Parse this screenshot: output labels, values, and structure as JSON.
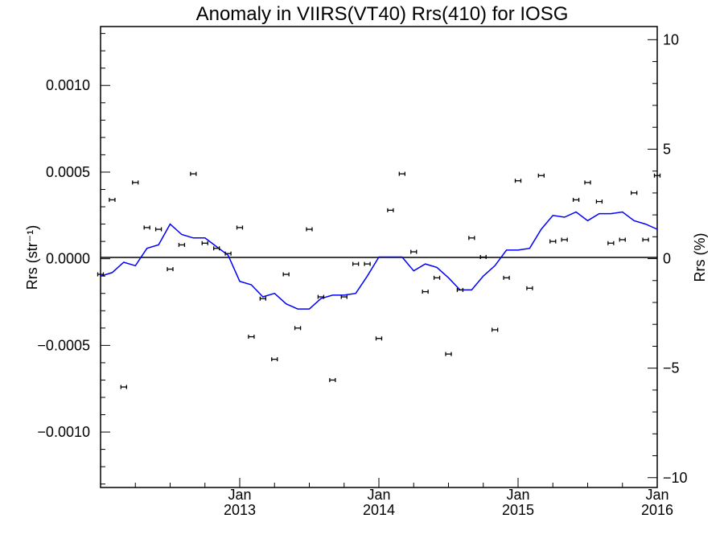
{
  "chart_data": {
    "type": "scatter",
    "title": "Anomaly in VIIRS(VT40) Rrs(410) for IOSG",
    "ylabel_left": "Rrs (str⁻¹)",
    "ylabel_right": "Rrs (%)",
    "xlabel": "",
    "x_ticks": [
      {
        "month": "Jan",
        "year": "2013"
      },
      {
        "month": "Jan",
        "year": "2014"
      },
      {
        "month": "Jan",
        "year": "2015"
      },
      {
        "month": "Jan",
        "year": "2016"
      }
    ],
    "left_ticks": [
      "0.0010",
      "0.0005",
      "0.0000",
      "−0.0005",
      "−0.0010"
    ],
    "right_ticks": [
      "10",
      "5",
      "0",
      "−5",
      "−10"
    ],
    "xlim": [
      "2012-01",
      "2016-01"
    ],
    "ylim_left": [
      -0.00132,
      0.00134
    ],
    "ylim_right": [
      -10.45,
      10.6
    ],
    "grid": false,
    "zero_line": true,
    "colors": {
      "points": "#000000",
      "line": "#0000ff",
      "zero_line": "#000000"
    },
    "series": [
      {
        "kind": "points_with_error_bars",
        "x": [
          "2012-01",
          "2012-02",
          "2012-03",
          "2012-04",
          "2012-05",
          "2012-06",
          "2012-07",
          "2012-08",
          "2012-09",
          "2012-10",
          "2012-11",
          "2012-12",
          "2013-01",
          "2013-02",
          "2013-03",
          "2013-04",
          "2013-05",
          "2013-06",
          "2013-07",
          "2013-08",
          "2013-09",
          "2013-10",
          "2013-11",
          "2013-12",
          "2014-01",
          "2014-02",
          "2014-03",
          "2014-04",
          "2014-05",
          "2014-06",
          "2014-07",
          "2014-08",
          "2014-09",
          "2014-10",
          "2014-11",
          "2014-12",
          "2015-01",
          "2015-02",
          "2015-03",
          "2015-04",
          "2015-05",
          "2015-06",
          "2015-07",
          "2015-08",
          "2015-09",
          "2015-10",
          "2015-11",
          "2015-12",
          "2016-01"
        ],
        "y": [
          -9e-05,
          0.00034,
          -0.00074,
          0.00044,
          0.00018,
          0.00017,
          -6e-05,
          8e-05,
          0.00049,
          9e-05,
          6e-05,
          3e-05,
          0.00018,
          -0.00045,
          -0.00023,
          -0.00058,
          -9e-05,
          -0.0004,
          0.00017,
          -0.00022,
          -0.0007,
          -0.00022,
          -3e-05,
          -3e-05,
          -0.00046,
          0.00028,
          0.00049,
          4e-05,
          -0.00019,
          -0.00011,
          -0.00055,
          -0.00018,
          0.00012,
          1e-05,
          -0.00041,
          -0.00011,
          0.00045,
          -0.00017,
          0.00048,
          0.0001,
          0.00011,
          0.00034,
          0.00044,
          0.00033,
          9e-05,
          0.00011,
          0.00038,
          0.00011,
          0.00048
        ]
      },
      {
        "kind": "line",
        "x": [
          "2012-01",
          "2012-02",
          "2012-03",
          "2012-04",
          "2012-05",
          "2012-06",
          "2012-07",
          "2012-08",
          "2012-09",
          "2012-10",
          "2012-11",
          "2012-12",
          "2013-01",
          "2013-02",
          "2013-03",
          "2013-04",
          "2013-05",
          "2013-06",
          "2013-07",
          "2013-08",
          "2013-09",
          "2013-10",
          "2013-11",
          "2013-12",
          "2014-01",
          "2014-02",
          "2014-03",
          "2014-04",
          "2014-05",
          "2014-06",
          "2014-07",
          "2014-08",
          "2014-09",
          "2014-10",
          "2014-11",
          "2014-12",
          "2015-01",
          "2015-02",
          "2015-03",
          "2015-04",
          "2015-05",
          "2015-06",
          "2015-07",
          "2015-08",
          "2015-09",
          "2015-10",
          "2015-11",
          "2015-12",
          "2016-01"
        ],
        "y": [
          -0.0001,
          -8e-05,
          -2e-05,
          -4e-05,
          6e-05,
          8e-05,
          0.0002,
          0.00014,
          0.00012,
          0.00012,
          7e-05,
          2e-05,
          -0.00013,
          -0.00015,
          -0.00022,
          -0.0002,
          -0.00026,
          -0.00029,
          -0.00029,
          -0.00023,
          -0.00021,
          -0.00021,
          -0.0002,
          -0.0001,
          1e-05,
          1e-05,
          1e-05,
          -7e-05,
          -3e-05,
          -5e-05,
          -0.00011,
          -0.00018,
          -0.00018,
          -0.0001,
          -4e-05,
          5e-05,
          5e-05,
          6e-05,
          0.00017,
          0.00025,
          0.00024,
          0.00027,
          0.00022,
          0.00026,
          0.00026,
          0.00027,
          0.00022,
          0.0002,
          0.00017
        ]
      }
    ]
  }
}
